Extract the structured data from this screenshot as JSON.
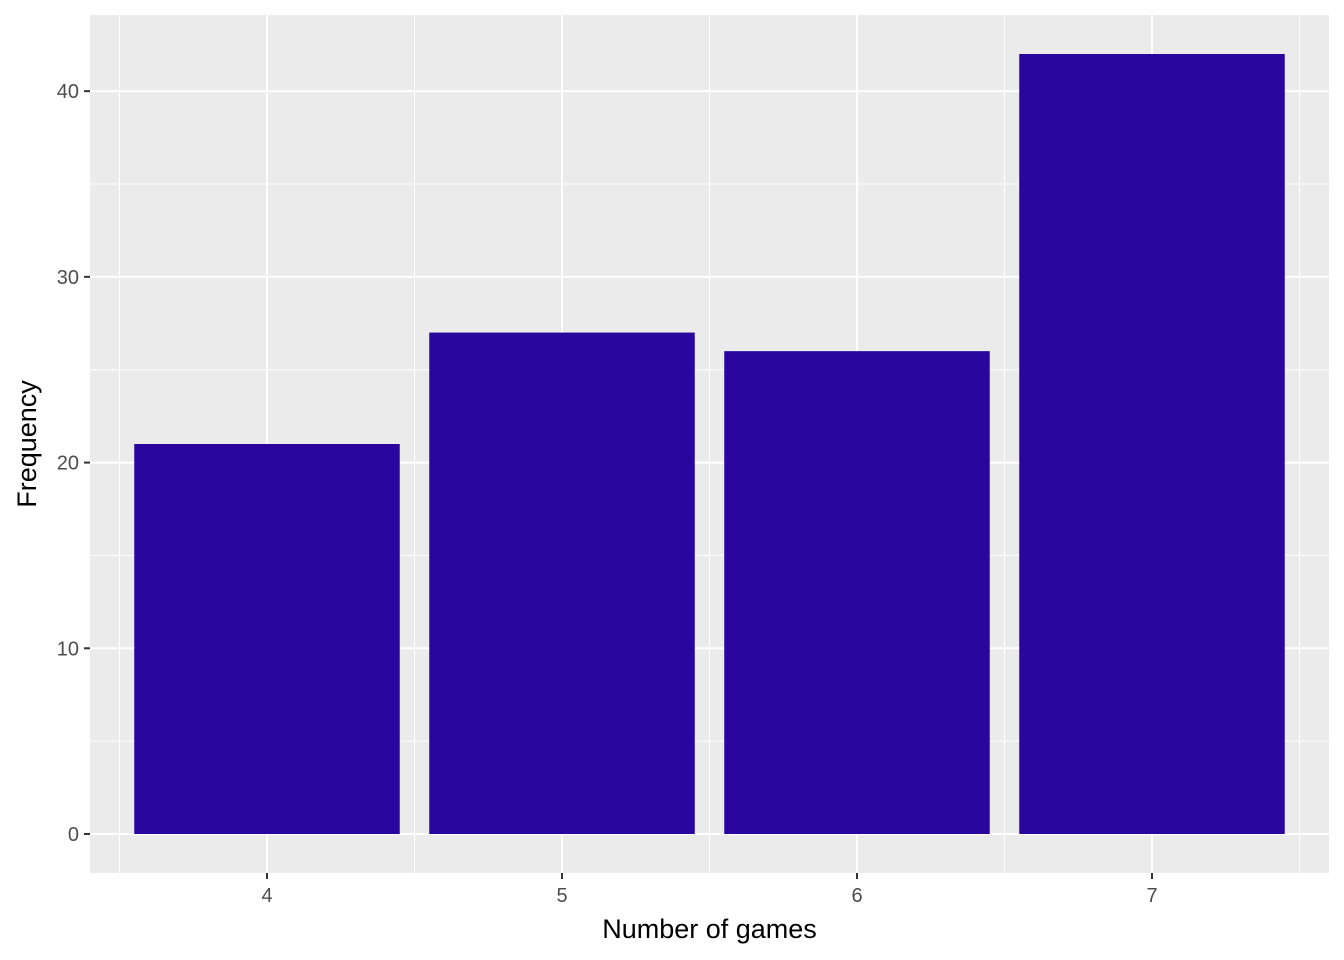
{
  "chart_data": {
    "type": "bar",
    "title": "",
    "xlabel": "Number of games",
    "ylabel": "Frequency",
    "categories": [
      "4",
      "5",
      "6",
      "7"
    ],
    "values": [
      21,
      27,
      26,
      42
    ],
    "yticks": [
      0,
      10,
      20,
      30,
      40
    ],
    "ylim": [
      -2.1,
      44.1
    ],
    "grid": true,
    "colors": {
      "bar": "#2A069F",
      "panel": "#EBEBEB",
      "grid": "#FFFFFF"
    }
  }
}
